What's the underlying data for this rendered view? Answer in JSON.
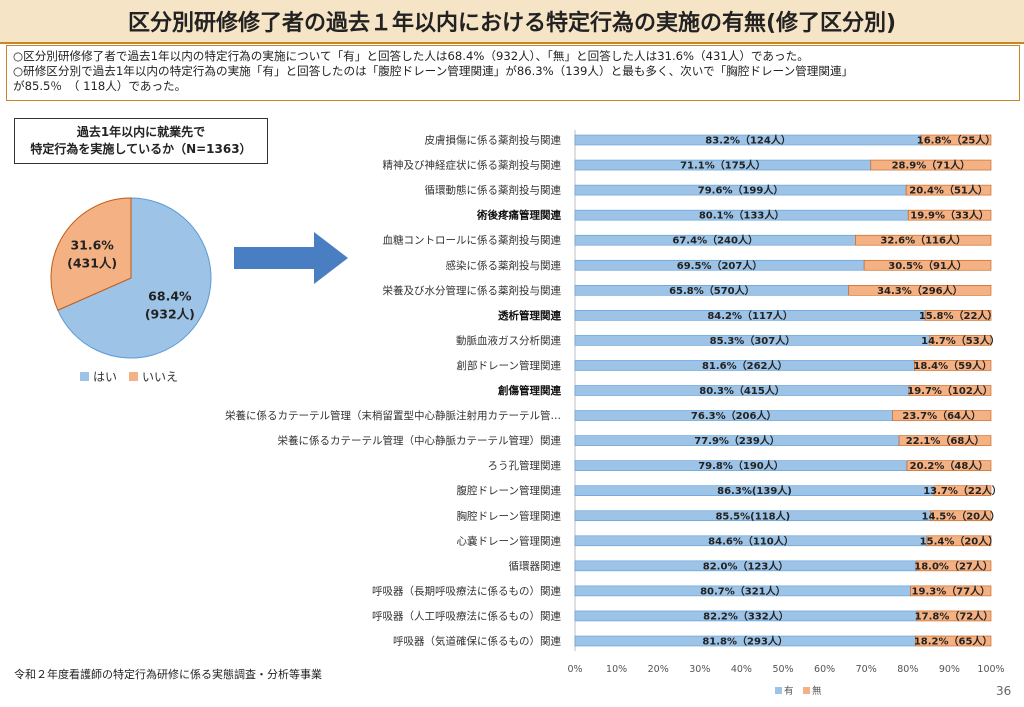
{
  "header": {
    "title": "区分別研修修了者の過去１年以内における特定行為の実施の有無(修了区分別)"
  },
  "summary": {
    "line1": "○区分別研修修了者で過去1年以内の特定行為の実施について「有」と回答した人は68.4%（932人）、「無」と回答した人は31.6%（431人）であった。",
    "line2": "○研修区分別で過去1年以内の特定行為の実施「有」と回答したのは「腹腔ドレーン管理関連」が86.3%（139人）と最も多く、次いで「胸腔ドレーン管理関連」",
    "line3": "が85.5％　（ 118人）であった。"
  },
  "pie_box": {
    "line1": "過去1年以内に就業先で",
    "line2": "特定行為を実施しているか（N=1363）"
  },
  "footnote": "令和２年度看護師の特定行為研修に係る実態調査・分析等事業",
  "page_number": "36",
  "colors": {
    "yes": "#9dc3e6",
    "no": "#f4b183",
    "yes_stroke": "#5b9bd5",
    "no_stroke": "#c55a11",
    "arrow": "#4a7ec2",
    "header_bg": "#f6e4c6",
    "header_border": "#c8862a"
  },
  "chart_data": [
    {
      "type": "pie",
      "title": "過去1年以内に就業先で特定行為を実施しているか（N=1363）",
      "slices": [
        {
          "name": "はい",
          "value": 68.4,
          "count_label": "(932人)",
          "pct_label": "68.4%"
        },
        {
          "name": "いいえ",
          "value": 31.6,
          "count_label": "(431人)",
          "pct_label": "31.6%"
        }
      ],
      "legend": [
        "はい",
        "いいえ"
      ],
      "legend_position": "bottom"
    },
    {
      "type": "bar",
      "orientation": "horizontal",
      "stacked": "100%",
      "categories": [
        "皮膚損傷に係る薬剤投与関連",
        "精神及び神経症状に係る薬剤投与関連",
        "循環動態に係る薬剤投与関連",
        "術後疼痛管理関連",
        "血糖コントロールに係る薬剤投与関連",
        "感染に係る薬剤投与関連",
        "栄養及び水分管理に係る薬剤投与関連",
        "透析管理関連",
        "動脈血液ガス分析関連",
        "創部ドレーン管理関連",
        "創傷管理関連",
        "栄養に係るカテーテル管理（末梢留置型中心静脈注射用カテーテル管…",
        "栄養に係るカテーテル管理（中心静脈カテーテル管理）関連",
        "ろう孔管理関連",
        "腹腔ドレーン管理関連",
        "胸腔ドレーン管理関連",
        "心嚢ドレーン管理関連",
        "循環器関連",
        "呼吸器（長期呼吸療法に係るもの）関連",
        "呼吸器（人工呼吸療法に係るもの）関連",
        "呼吸器（気道確保に係るもの）関連"
      ],
      "bold_categories": [
        "術後疼痛管理関連",
        "透析管理関連",
        "創傷管理関連"
      ],
      "series": [
        {
          "name": "有",
          "values": [
            83.2,
            71.1,
            79.6,
            80.1,
            67.4,
            69.5,
            65.8,
            84.2,
            85.3,
            81.6,
            80.3,
            76.3,
            77.9,
            79.8,
            86.3,
            85.5,
            84.6,
            82.0,
            80.7,
            82.2,
            81.8
          ],
          "labels": [
            "83.2%（124人）",
            "71.1%（175人）",
            "79.6%（199人）",
            "80.1%（133人）",
            "67.4%（240人）",
            "69.5%（207人）",
            "65.8%（570人）",
            "84.2%（117人）",
            "85.3%（307人）",
            "81.6%（262人）",
            "80.3%（415人）",
            "76.3%（206人）",
            "77.9%（239人）",
            "79.8%（190人）",
            "86.3%(139人)",
            "85.5%(118人)",
            "84.6%（110人）",
            "82.0%（123人）",
            "80.7%（321人）",
            "82.2%（332人）",
            "81.8%（293人）"
          ]
        },
        {
          "name": "無",
          "values": [
            16.8,
            28.9,
            20.4,
            19.9,
            32.6,
            30.5,
            34.3,
            15.8,
            14.7,
            18.4,
            19.7,
            23.7,
            22.1,
            20.2,
            13.7,
            14.5,
            15.4,
            18.0,
            19.3,
            17.8,
            18.2
          ],
          "labels": [
            "16.8%（25人）",
            "28.9%（71人）",
            "20.4%（51人）",
            "19.9%（33人）",
            "32.6%（116人）",
            "30.5%（91人）",
            "34.3%（296人）",
            "15.8%（22人）",
            "14.7%（53人）",
            "18.4%（59人）",
            "19.7%（102人）",
            "23.7%（64人）",
            "22.1%（68人）",
            "20.2%（48人）",
            "13.7%（22人）",
            "14.5%（20人）",
            "15.4%（20人）",
            "18.0%（27人）",
            "19.3%（77人）",
            "17.8%（72人）",
            "18.2%（65人）"
          ]
        }
      ],
      "xlim": [
        0,
        100
      ],
      "xticks": [
        "0%",
        "10%",
        "20%",
        "30%",
        "40%",
        "50%",
        "60%",
        "70%",
        "80%",
        "90%",
        "100%"
      ],
      "legend_position": "bottom-center"
    }
  ]
}
